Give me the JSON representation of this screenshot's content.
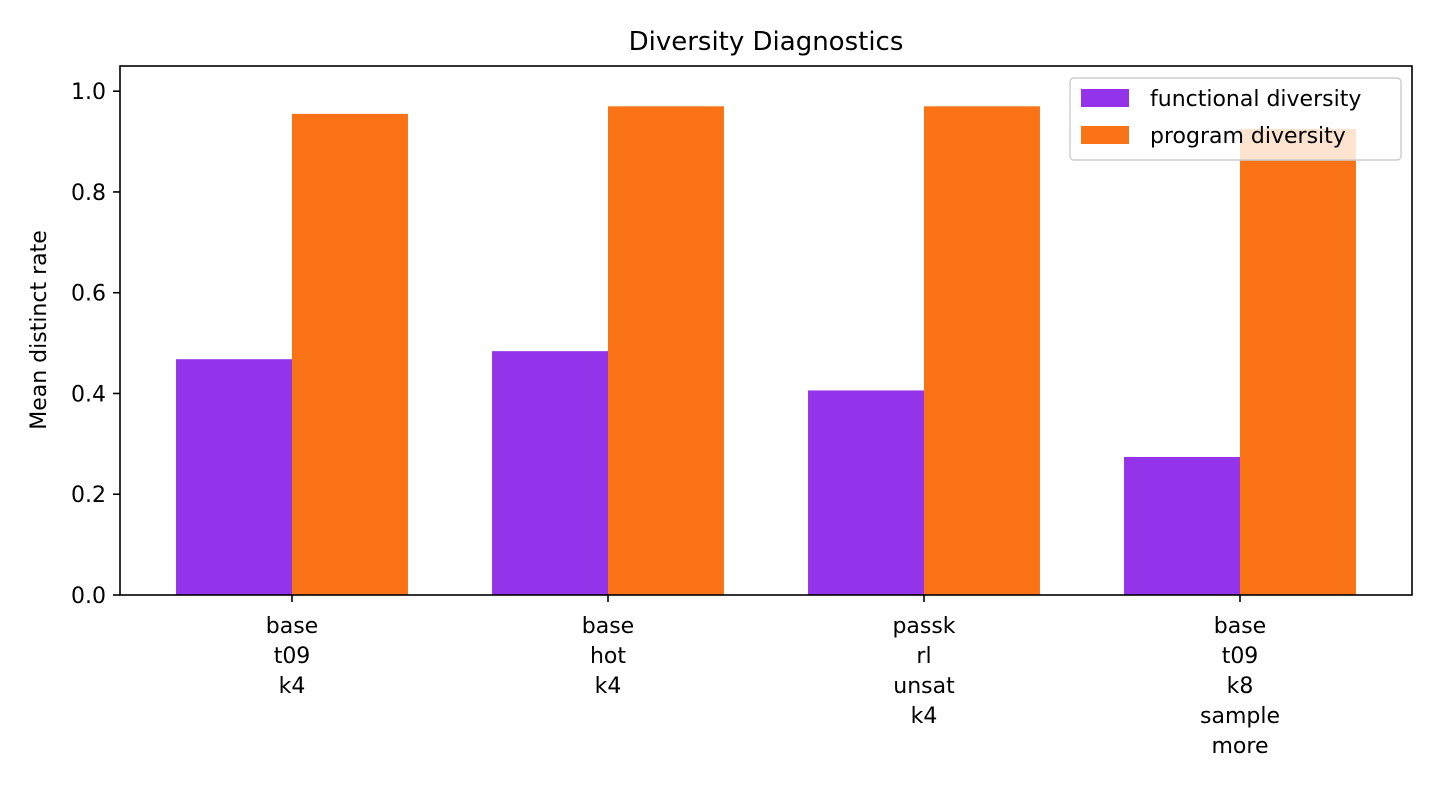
{
  "chart_data": {
    "type": "bar",
    "title": "Diversity Diagnostics",
    "xlabel": "",
    "ylabel": "Mean distinct rate",
    "ylim": [
      0,
      1.05
    ],
    "yticks": [
      "0.0",
      "0.2",
      "0.4",
      "0.6",
      "0.8",
      "1.0"
    ],
    "categories": [
      [
        "base",
        "t09",
        "k4"
      ],
      [
        "base",
        "hot",
        "k4"
      ],
      [
        "passk",
        "rl",
        "unsat",
        "k4"
      ],
      [
        "base",
        "t09",
        "k8",
        "sample",
        "more"
      ]
    ],
    "series": [
      {
        "name": "functional diversity",
        "color": "#9333ea",
        "values": [
          0.468,
          0.484,
          0.406,
          0.274
        ]
      },
      {
        "name": "program diversity",
        "color": "#f97316",
        "values": [
          0.955,
          0.97,
          0.97,
          0.925
        ]
      }
    ],
    "grid": false,
    "legend_position": "top-right"
  }
}
